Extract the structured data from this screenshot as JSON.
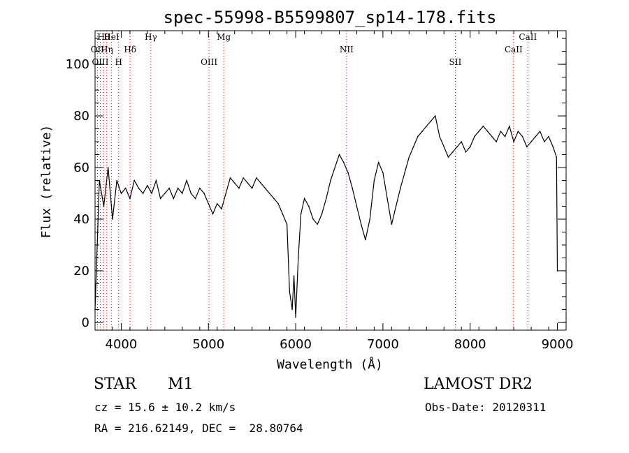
{
  "chart_data": {
    "type": "line",
    "title": "spec-55998-B5599807_sp14-178.fits",
    "xlabel": "Wavelength (Å)",
    "ylabel": "Flux (relative)",
    "xlim": [
      3700,
      9100
    ],
    "ylim": [
      -3,
      113
    ],
    "xticks": [
      4000,
      5000,
      6000,
      7000,
      8000,
      9000
    ],
    "yticks": [
      0,
      20,
      40,
      60,
      80,
      100
    ],
    "grid": false,
    "lines": [
      {
        "name": "Hθ",
        "wave": 3798
      },
      {
        "name": "OII",
        "wave": 3727
      },
      {
        "name": "H",
        "wave": 3970
      },
      {
        "name": "HeI",
        "wave": 3889
      },
      {
        "name": "Hη",
        "wave": 3835
      },
      {
        "name": "OIII",
        "wave": 3760
      },
      {
        "name": "Hγ",
        "wave": 4340
      },
      {
        "name": "Hδ",
        "wave": 4102
      },
      {
        "name": "OIII",
        "wave": 5007
      },
      {
        "name": "Mg",
        "wave": 5175
      },
      {
        "name": "NII",
        "wave": 6583
      },
      {
        "name": "SII",
        "wave": 7830
      },
      {
        "name": "CaII",
        "wave": 8662
      },
      {
        "name": "CaII",
        "wave": 8498
      }
    ],
    "x": [
      3700,
      3750,
      3800,
      3850,
      3900,
      3950,
      4000,
      4050,
      4100,
      4150,
      4200,
      4250,
      4300,
      4350,
      4400,
      4450,
      4500,
      4550,
      4600,
      4650,
      4700,
      4750,
      4800,
      4850,
      4900,
      4950,
      5000,
      5050,
      5100,
      5150,
      5200,
      5250,
      5300,
      5350,
      5400,
      5450,
      5500,
      5550,
      5600,
      5650,
      5700,
      5750,
      5800,
      5850,
      5900,
      5930,
      5960,
      5980,
      6000,
      6030,
      6060,
      6100,
      6150,
      6200,
      6250,
      6300,
      6350,
      6400,
      6450,
      6500,
      6550,
      6600,
      6650,
      6700,
      6750,
      6800,
      6850,
      6900,
      6950,
      7000,
      7050,
      7100,
      7150,
      7200,
      7250,
      7300,
      7350,
      7400,
      7450,
      7500,
      7550,
      7600,
      7650,
      7700,
      7750,
      7800,
      7850,
      7900,
      7950,
      8000,
      8050,
      8100,
      8150,
      8200,
      8250,
      8300,
      8350,
      8400,
      8450,
      8500,
      8550,
      8600,
      8650,
      8700,
      8750,
      8800,
      8850,
      8900,
      8950,
      8990,
      9000
    ],
    "y": [
      5,
      55,
      45,
      60,
      40,
      55,
      50,
      52,
      48,
      55,
      52,
      50,
      53,
      50,
      55,
      48,
      50,
      52,
      48,
      52,
      50,
      55,
      50,
      48,
      52,
      50,
      46,
      42,
      46,
      44,
      50,
      56,
      54,
      52,
      56,
      54,
      52,
      56,
      54,
      52,
      50,
      48,
      46,
      42,
      38,
      12,
      5,
      18,
      2,
      25,
      42,
      48,
      45,
      40,
      38,
      42,
      48,
      55,
      60,
      65,
      62,
      58,
      52,
      45,
      38,
      32,
      40,
      55,
      62,
      58,
      48,
      38,
      45,
      52,
      58,
      64,
      68,
      72,
      74,
      76,
      78,
      80,
      72,
      68,
      64,
      66,
      68,
      70,
      66,
      68,
      72,
      74,
      76,
      74,
      72,
      70,
      74,
      72,
      76,
      70,
      74,
      72,
      68,
      70,
      72,
      74,
      70,
      72,
      68,
      64,
      20
    ]
  },
  "footer": {
    "object_type": "STAR",
    "subclass": "M1",
    "survey": "LAMOST DR2",
    "cz": "cz = 15.6 ± 10.2 km/s",
    "obs_date": "Obs-Date: 20120311",
    "coords": "RA = 216.62149, DEC =  28.80764"
  }
}
